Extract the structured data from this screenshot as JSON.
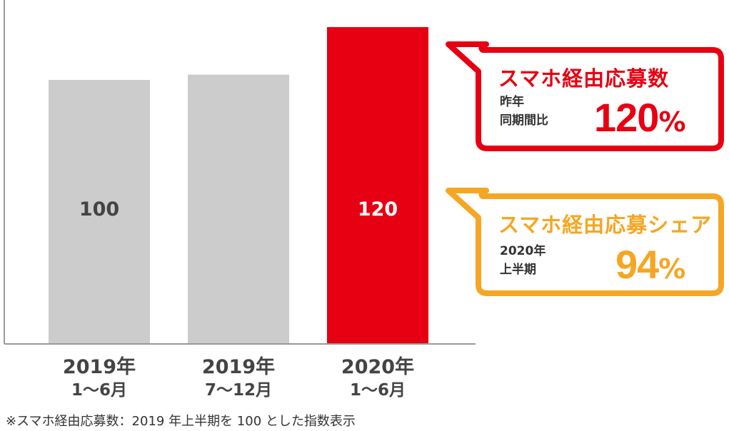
{
  "chart_data": {
    "type": "bar",
    "categories": [
      {
        "line1": "2019年",
        "line2": "1～6月"
      },
      {
        "line1": "2019年",
        "line2": "7～12月"
      },
      {
        "line1": "2020年",
        "line2": "1～6月"
      }
    ],
    "values": [
      100,
      102,
      120
    ],
    "value_labels": [
      "100",
      "",
      "120"
    ],
    "ylim": [
      0,
      130
    ],
    "grid": false,
    "colors": [
      "#cccccc",
      "#cccccc",
      "#e60012"
    ]
  },
  "callouts": [
    {
      "title": "スマホ経由応募数",
      "sub1": "昨年",
      "sub2": "同期間比",
      "value": "120",
      "unit": "%",
      "color": "#e60012"
    },
    {
      "title": "スマホ経由応募シェア",
      "sub1": "2020年",
      "sub2": "上半期",
      "value": "94",
      "unit": "%",
      "color": "#f5a623"
    }
  ],
  "note": "※スマホ経由応募数：2019 年上半期を 100 とした指数表示"
}
